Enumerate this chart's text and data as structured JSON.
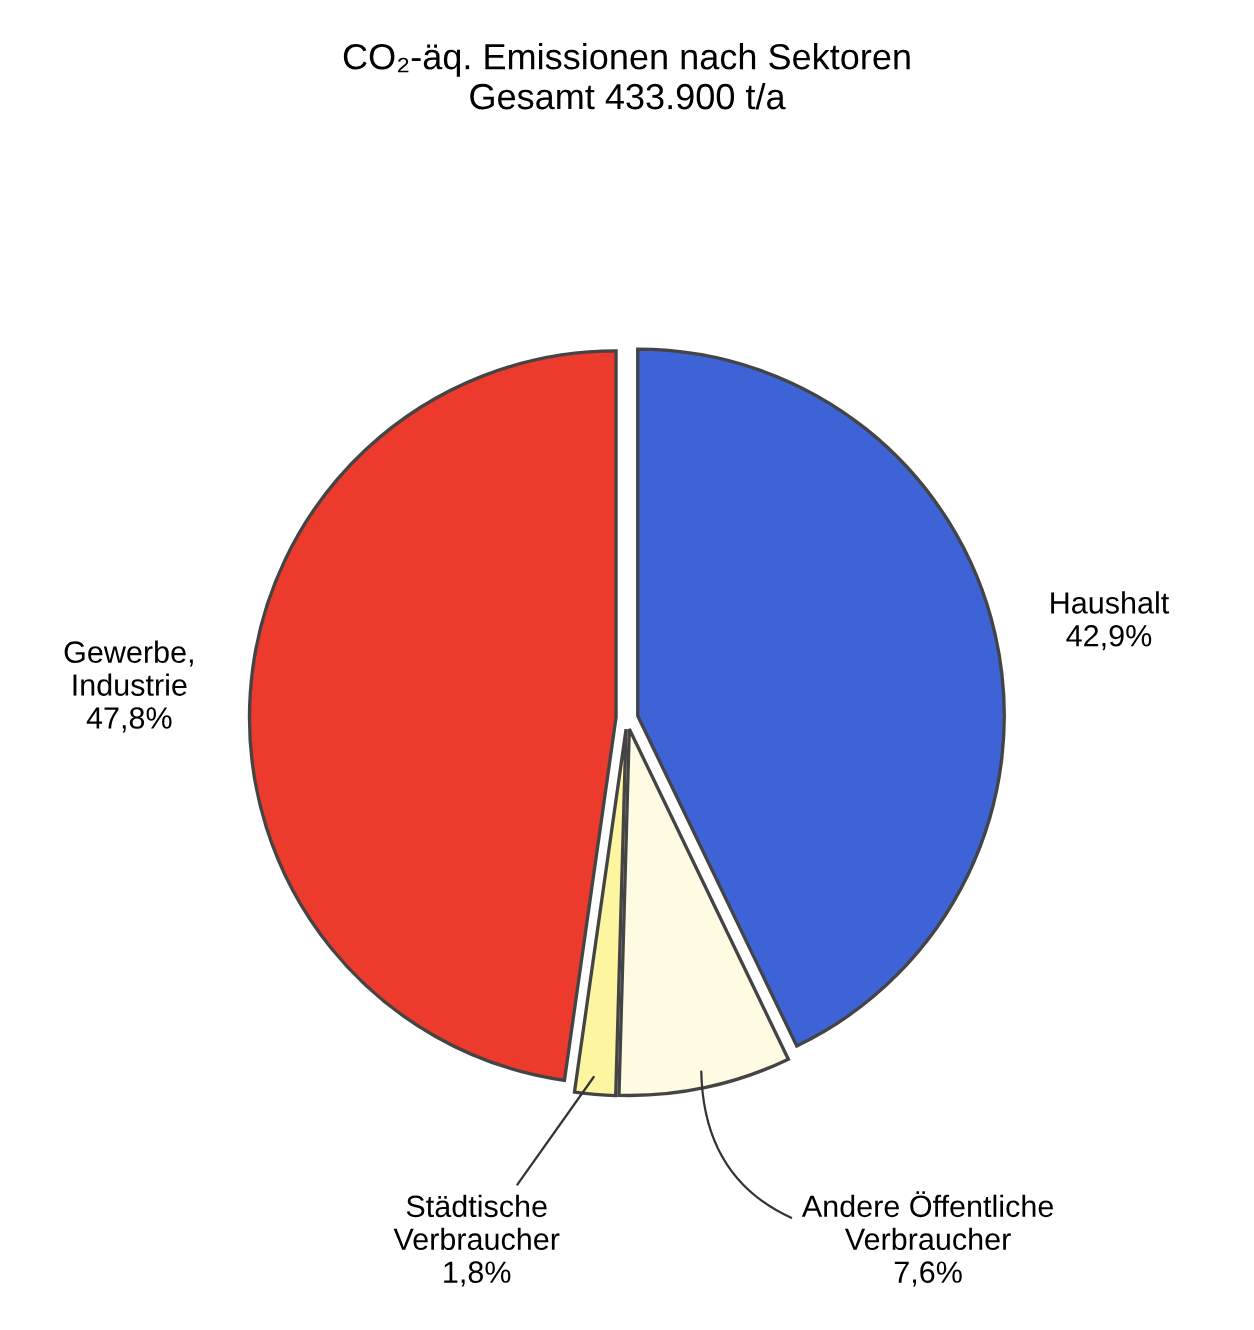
{
  "chart_data": {
    "type": "pie",
    "title": "CO₂-äq. Emissionen nach Sektoren",
    "subtitle": "Gesamt 433.900 t/a",
    "categories": [
      "Haushalt",
      "Andere Öffentliche\nVerbraucher",
      "Städtische\nVerbraucher",
      "Gewerbe,\nIndustrie"
    ],
    "values": [
      42.9,
      7.6,
      1.8,
      47.8
    ],
    "value_labels": [
      "42,9%",
      "7,6%",
      "1,8%",
      "47,8%"
    ],
    "colors": [
      "#3d63d6",
      "#fffbe3",
      "#fdf5a0",
      "#ec3a2c"
    ]
  }
}
